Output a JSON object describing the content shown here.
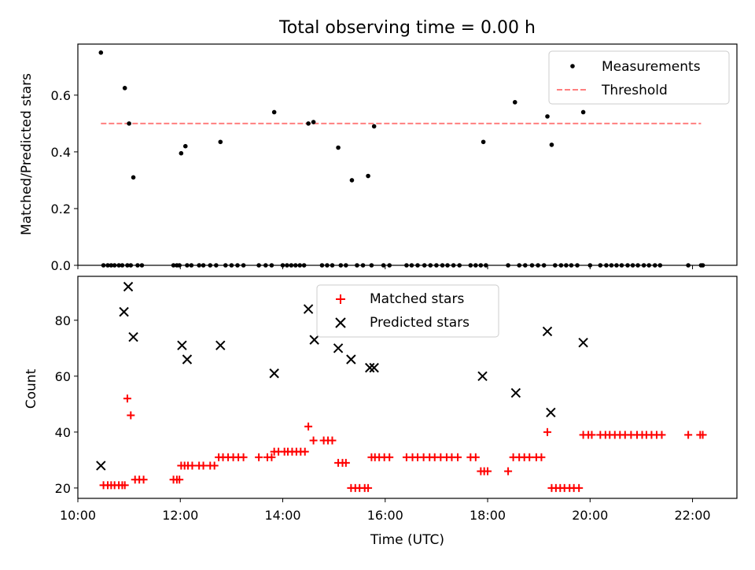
{
  "chart_data": [
    {
      "type": "scatter",
      "title": "Total observing time = 0.00 h",
      "xlabel": "",
      "ylabel": "Matched/Predicted stars",
      "xlim": [
        "10:00",
        "22:52"
      ],
      "ylim": [
        0,
        0.78
      ],
      "yticks": [
        0.0,
        0.2,
        0.4,
        0.6
      ],
      "ytick_labels": [
        "0.0",
        "0.2",
        "0.4",
        "0.6"
      ],
      "legend_position": "top-right",
      "grid": false,
      "series": [
        {
          "name": "Measurements",
          "marker": "dot",
          "color": "#000000",
          "points": [
            [
              "10:27",
              0.75
            ],
            [
              "10:30",
              0
            ],
            [
              "10:35",
              0
            ],
            [
              "10:39",
              0
            ],
            [
              "10:43",
              0
            ],
            [
              "10:48",
              0
            ],
            [
              "10:52",
              0
            ],
            [
              "10:55",
              0.625
            ],
            [
              "10:58",
              0
            ],
            [
              "11:00",
              0.5
            ],
            [
              "11:02",
              0
            ],
            [
              "11:05",
              0.31
            ],
            [
              "11:10",
              0
            ],
            [
              "11:15",
              0
            ],
            [
              "11:52",
              0
            ],
            [
              "11:56",
              0
            ],
            [
              "11:59",
              0
            ],
            [
              "12:01",
              0.395
            ],
            [
              "12:06",
              0.42
            ],
            [
              "12:08",
              0
            ],
            [
              "12:13",
              0
            ],
            [
              "12:22",
              0
            ],
            [
              "12:27",
              0
            ],
            [
              "12:35",
              0
            ],
            [
              "12:42",
              0
            ],
            [
              "12:47",
              0.435
            ],
            [
              "12:53",
              0
            ],
            [
              "13:00",
              0
            ],
            [
              "13:07",
              0
            ],
            [
              "13:14",
              0
            ],
            [
              "13:32",
              0
            ],
            [
              "13:40",
              0
            ],
            [
              "13:47",
              0
            ],
            [
              "13:50",
              0.54
            ],
            [
              "14:00",
              0
            ],
            [
              "14:05",
              0
            ],
            [
              "14:10",
              0
            ],
            [
              "14:15",
              0
            ],
            [
              "14:20",
              0
            ],
            [
              "14:25",
              0
            ],
            [
              "14:30",
              0.5
            ],
            [
              "14:36",
              0.505
            ],
            [
              "14:46",
              0
            ],
            [
              "14:52",
              0
            ],
            [
              "14:58",
              0
            ],
            [
              "15:05",
              0.415
            ],
            [
              "15:08",
              0
            ],
            [
              "15:14",
              0
            ],
            [
              "15:21",
              0.3
            ],
            [
              "15:27",
              0
            ],
            [
              "15:34",
              0
            ],
            [
              "15:40",
              0.315
            ],
            [
              "15:44",
              0
            ],
            [
              "15:47",
              0.49
            ],
            [
              "15:58",
              0
            ],
            [
              "16:05",
              0
            ],
            [
              "16:25",
              0
            ],
            [
              "16:31",
              0
            ],
            [
              "16:38",
              0
            ],
            [
              "16:46",
              0
            ],
            [
              "16:53",
              0
            ],
            [
              "17:00",
              0
            ],
            [
              "17:07",
              0
            ],
            [
              "17:13",
              0
            ],
            [
              "17:20",
              0
            ],
            [
              "17:27",
              0
            ],
            [
              "17:40",
              0
            ],
            [
              "17:46",
              0
            ],
            [
              "17:52",
              0
            ],
            [
              "17:55",
              0.435
            ],
            [
              "17:58",
              0
            ],
            [
              "18:24",
              0
            ],
            [
              "18:32",
              0.575
            ],
            [
              "18:37",
              0
            ],
            [
              "18:44",
              0
            ],
            [
              "18:52",
              0
            ],
            [
              "18:59",
              0
            ],
            [
              "19:06",
              0
            ],
            [
              "19:10",
              0.525
            ],
            [
              "19:15",
              0.425
            ],
            [
              "19:19",
              0
            ],
            [
              "19:26",
              0
            ],
            [
              "19:32",
              0
            ],
            [
              "19:38",
              0
            ],
            [
              "19:45",
              0
            ],
            [
              "19:52",
              0.54
            ],
            [
              "20:00",
              0
            ],
            [
              "20:12",
              0
            ],
            [
              "20:19",
              0
            ],
            [
              "20:25",
              0
            ],
            [
              "20:31",
              0
            ],
            [
              "20:37",
              0
            ],
            [
              "20:44",
              0
            ],
            [
              "20:50",
              0
            ],
            [
              "20:56",
              0
            ],
            [
              "21:03",
              0
            ],
            [
              "21:09",
              0
            ],
            [
              "21:16",
              0
            ],
            [
              "21:22",
              0
            ],
            [
              "21:55",
              0
            ],
            [
              "22:10",
              0
            ],
            [
              "22:12",
              0
            ]
          ]
        },
        {
          "name": "Threshold",
          "style": "dashed-line",
          "color": "#ff7f7f",
          "points": [
            [
              "10:27",
              0.5
            ],
            [
              "22:10",
              0.5
            ]
          ]
        }
      ]
    },
    {
      "type": "scatter",
      "title": "",
      "xlabel": "Time (UTC)",
      "ylabel": "Count",
      "xlim": [
        "10:00",
        "22:52"
      ],
      "ylim": [
        16.3,
        95.7
      ],
      "xticks": [
        "10:00",
        "12:00",
        "14:00",
        "16:00",
        "18:00",
        "20:00",
        "22:00"
      ],
      "yticks": [
        20,
        40,
        60,
        80
      ],
      "legend_position": "top-center",
      "grid": false,
      "series": [
        {
          "name": "Matched stars",
          "marker": "plus",
          "color": "#ff0000",
          "points": [
            [
              "10:30",
              21
            ],
            [
              "10:35",
              21
            ],
            [
              "10:39",
              21
            ],
            [
              "10:43",
              21
            ],
            [
              "10:48",
              21
            ],
            [
              "10:52",
              21
            ],
            [
              "10:55",
              21
            ],
            [
              "10:58",
              52
            ],
            [
              "11:02",
              46
            ],
            [
              "11:07",
              23
            ],
            [
              "11:12",
              23
            ],
            [
              "11:17",
              23
            ],
            [
              "11:52",
              23
            ],
            [
              "11:56",
              23
            ],
            [
              "11:59",
              23
            ],
            [
              "12:01",
              28
            ],
            [
              "12:05",
              28
            ],
            [
              "12:09",
              28
            ],
            [
              "12:14",
              28
            ],
            [
              "12:22",
              28
            ],
            [
              "12:27",
              28
            ],
            [
              "12:35",
              28
            ],
            [
              "12:40",
              28
            ],
            [
              "12:45",
              31
            ],
            [
              "12:50",
              31
            ],
            [
              "12:56",
              31
            ],
            [
              "13:02",
              31
            ],
            [
              "13:08",
              31
            ],
            [
              "13:14",
              31
            ],
            [
              "13:32",
              31
            ],
            [
              "13:42",
              31
            ],
            [
              "13:47",
              31
            ],
            [
              "13:50",
              33
            ],
            [
              "13:55",
              33
            ],
            [
              "14:02",
              33
            ],
            [
              "14:06",
              33
            ],
            [
              "14:11",
              33
            ],
            [
              "14:16",
              33
            ],
            [
              "14:21",
              33
            ],
            [
              "14:26",
              33
            ],
            [
              "14:30",
              42
            ],
            [
              "14:36",
              37
            ],
            [
              "14:48",
              37
            ],
            [
              "14:53",
              37
            ],
            [
              "14:58",
              37
            ],
            [
              "15:05",
              29
            ],
            [
              "15:10",
              29
            ],
            [
              "15:14",
              29
            ],
            [
              "15:20",
              20
            ],
            [
              "15:25",
              20
            ],
            [
              "15:30",
              20
            ],
            [
              "15:36",
              20
            ],
            [
              "15:40",
              20
            ],
            [
              "15:44",
              31
            ],
            [
              "15:48",
              31
            ],
            [
              "15:53",
              31
            ],
            [
              "15:59",
              31
            ],
            [
              "16:05",
              31
            ],
            [
              "16:25",
              31
            ],
            [
              "16:32",
              31
            ],
            [
              "16:38",
              31
            ],
            [
              "16:45",
              31
            ],
            [
              "16:52",
              31
            ],
            [
              "16:58",
              31
            ],
            [
              "17:05",
              31
            ],
            [
              "17:12",
              31
            ],
            [
              "17:18",
              31
            ],
            [
              "17:25",
              31
            ],
            [
              "17:40",
              31
            ],
            [
              "17:46",
              31
            ],
            [
              "17:52",
              26
            ],
            [
              "17:56",
              26
            ],
            [
              "18:00",
              26
            ],
            [
              "18:24",
              26
            ],
            [
              "18:30",
              31
            ],
            [
              "18:37",
              31
            ],
            [
              "18:43",
              31
            ],
            [
              "18:49",
              31
            ],
            [
              "18:57",
              31
            ],
            [
              "19:03",
              31
            ],
            [
              "19:10",
              40
            ],
            [
              "19:15",
              20
            ],
            [
              "19:20",
              20
            ],
            [
              "19:25",
              20
            ],
            [
              "19:30",
              20
            ],
            [
              "19:36",
              20
            ],
            [
              "19:41",
              20
            ],
            [
              "19:47",
              20
            ],
            [
              "19:52",
              39
            ],
            [
              "19:58",
              39
            ],
            [
              "20:02",
              39
            ],
            [
              "20:12",
              39
            ],
            [
              "20:18",
              39
            ],
            [
              "20:23",
              39
            ],
            [
              "20:29",
              39
            ],
            [
              "20:35",
              39
            ],
            [
              "20:41",
              39
            ],
            [
              "20:48",
              39
            ],
            [
              "20:55",
              39
            ],
            [
              "21:01",
              39
            ],
            [
              "21:06",
              39
            ],
            [
              "21:12",
              39
            ],
            [
              "21:18",
              39
            ],
            [
              "21:24",
              39
            ],
            [
              "21:55",
              39
            ],
            [
              "22:09",
              39
            ],
            [
              "22:12",
              39
            ]
          ]
        },
        {
          "name": "Predicted stars",
          "marker": "x",
          "color": "#000000",
          "points": [
            [
              "10:27",
              28
            ],
            [
              "10:54",
              83
            ],
            [
              "10:59",
              92
            ],
            [
              "11:05",
              74
            ],
            [
              "12:02",
              71
            ],
            [
              "12:08",
              66
            ],
            [
              "12:47",
              71
            ],
            [
              "13:50",
              61
            ],
            [
              "14:30",
              84
            ],
            [
              "14:37",
              73
            ],
            [
              "15:05",
              70
            ],
            [
              "15:20",
              66
            ],
            [
              "15:42",
              63
            ],
            [
              "15:47",
              63
            ],
            [
              "17:54",
              60
            ],
            [
              "18:33",
              54
            ],
            [
              "19:10",
              76
            ],
            [
              "19:14",
              47
            ],
            [
              "19:52",
              72
            ]
          ]
        }
      ]
    }
  ]
}
